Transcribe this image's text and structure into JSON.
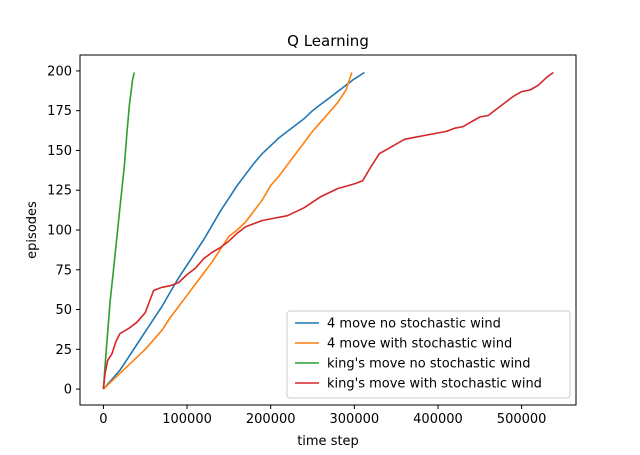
{
  "chart_data": {
    "type": "line",
    "title": "Q Learning",
    "xlabel": "time step",
    "ylabel": "episodes",
    "xlim": [
      -28000,
      565000
    ],
    "ylim": [
      -10,
      210
    ],
    "xticks": [
      0,
      100000,
      200000,
      300000,
      400000,
      500000
    ],
    "xtick_labels": [
      "0",
      "100000",
      "200000",
      "300000",
      "400000",
      "500000"
    ],
    "yticks": [
      0,
      25,
      50,
      75,
      100,
      125,
      150,
      175,
      200
    ],
    "ytick_labels": [
      "0",
      "25",
      "50",
      "75",
      "100",
      "125",
      "150",
      "175",
      "200"
    ],
    "grid": false,
    "legend_position": "lower-right",
    "series": [
      {
        "name": "4 move no stochastic wind",
        "color": "#1f77b4",
        "points": [
          [
            0,
            0
          ],
          [
            5000,
            3
          ],
          [
            10000,
            6
          ],
          [
            20000,
            12
          ],
          [
            30000,
            20
          ],
          [
            40000,
            28
          ],
          [
            50000,
            36
          ],
          [
            60000,
            44
          ],
          [
            70000,
            52
          ],
          [
            80000,
            61
          ],
          [
            90000,
            70
          ],
          [
            100000,
            78
          ],
          [
            110000,
            86
          ],
          [
            120000,
            94
          ],
          [
            130000,
            103
          ],
          [
            140000,
            112
          ],
          [
            150000,
            120
          ],
          [
            160000,
            128
          ],
          [
            170000,
            135
          ],
          [
            180000,
            142
          ],
          [
            190000,
            148
          ],
          [
            200000,
            153
          ],
          [
            210000,
            158
          ],
          [
            220000,
            162
          ],
          [
            230000,
            166
          ],
          [
            240000,
            170
          ],
          [
            250000,
            175
          ],
          [
            260000,
            179
          ],
          [
            270000,
            183
          ],
          [
            280000,
            187
          ],
          [
            290000,
            191
          ],
          [
            300000,
            195
          ],
          [
            312000,
            199
          ]
        ]
      },
      {
        "name": "4 move with stochastic wind",
        "color": "#ff7f0e",
        "points": [
          [
            0,
            0
          ],
          [
            10000,
            5
          ],
          [
            20000,
            10
          ],
          [
            30000,
            15
          ],
          [
            40000,
            20
          ],
          [
            50000,
            25
          ],
          [
            60000,
            31
          ],
          [
            70000,
            37
          ],
          [
            80000,
            45
          ],
          [
            90000,
            52
          ],
          [
            100000,
            59
          ],
          [
            110000,
            66
          ],
          [
            120000,
            73
          ],
          [
            130000,
            80
          ],
          [
            140000,
            88
          ],
          [
            150000,
            96
          ],
          [
            160000,
            100
          ],
          [
            170000,
            105
          ],
          [
            180000,
            112
          ],
          [
            190000,
            119
          ],
          [
            200000,
            128
          ],
          [
            210000,
            134
          ],
          [
            220000,
            141
          ],
          [
            230000,
            148
          ],
          [
            240000,
            155
          ],
          [
            250000,
            162
          ],
          [
            260000,
            168
          ],
          [
            270000,
            174
          ],
          [
            280000,
            180
          ],
          [
            290000,
            188
          ],
          [
            297000,
            199
          ]
        ]
      },
      {
        "name": "king's move no stochastic wind",
        "color": "#2ca02c",
        "points": [
          [
            0,
            0
          ],
          [
            2000,
            15
          ],
          [
            5000,
            35
          ],
          [
            8000,
            55
          ],
          [
            12000,
            75
          ],
          [
            16000,
            95
          ],
          [
            20000,
            115
          ],
          [
            25000,
            140
          ],
          [
            28000,
            160
          ],
          [
            31000,
            178
          ],
          [
            35000,
            195
          ],
          [
            37000,
            199
          ]
        ]
      },
      {
        "name": "king's move with stochastic wind",
        "color": "#d62728",
        "points": [
          [
            0,
            0
          ],
          [
            2000,
            10
          ],
          [
            5000,
            18
          ],
          [
            10000,
            22
          ],
          [
            15000,
            30
          ],
          [
            20000,
            35
          ],
          [
            30000,
            38
          ],
          [
            40000,
            42
          ],
          [
            50000,
            48
          ],
          [
            55000,
            55
          ],
          [
            60000,
            62
          ],
          [
            70000,
            64
          ],
          [
            80000,
            65
          ],
          [
            90000,
            67
          ],
          [
            100000,
            72
          ],
          [
            110000,
            76
          ],
          [
            120000,
            82
          ],
          [
            130000,
            86
          ],
          [
            140000,
            89
          ],
          [
            150000,
            93
          ],
          [
            160000,
            98
          ],
          [
            170000,
            102
          ],
          [
            180000,
            104
          ],
          [
            190000,
            106
          ],
          [
            200000,
            107
          ],
          [
            220000,
            109
          ],
          [
            240000,
            114
          ],
          [
            260000,
            121
          ],
          [
            280000,
            126
          ],
          [
            300000,
            129
          ],
          [
            310000,
            131
          ],
          [
            320000,
            140
          ],
          [
            330000,
            148
          ],
          [
            340000,
            151
          ],
          [
            350000,
            154
          ],
          [
            360000,
            157
          ],
          [
            370000,
            158
          ],
          [
            390000,
            160
          ],
          [
            410000,
            162
          ],
          [
            420000,
            164
          ],
          [
            430000,
            165
          ],
          [
            440000,
            168
          ],
          [
            450000,
            171
          ],
          [
            460000,
            172
          ],
          [
            470000,
            176
          ],
          [
            480000,
            180
          ],
          [
            490000,
            184
          ],
          [
            500000,
            187
          ],
          [
            510000,
            188
          ],
          [
            520000,
            191
          ],
          [
            530000,
            196
          ],
          [
            538000,
            199
          ]
        ]
      }
    ]
  }
}
